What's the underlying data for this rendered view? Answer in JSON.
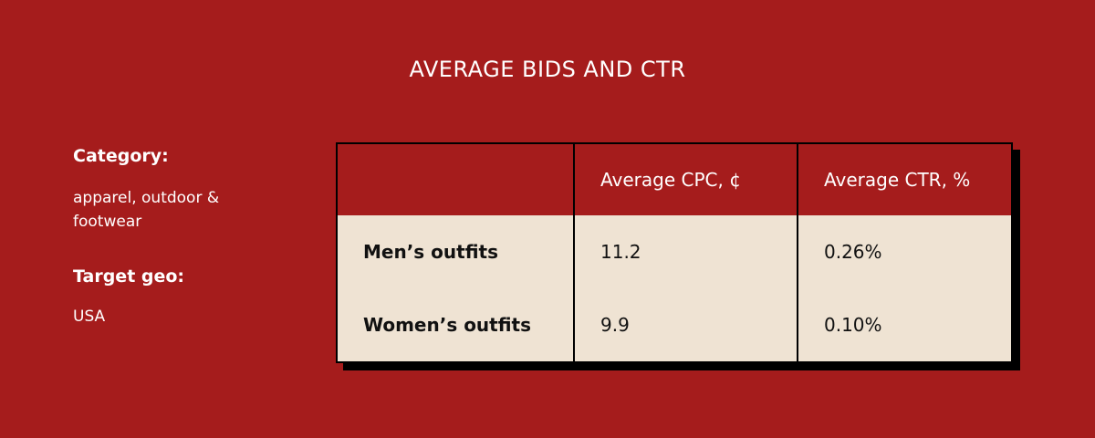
{
  "title": "AVERAGE BIDS AND CTR",
  "info": {
    "category_label": "Category:",
    "category_value": "apparel, outdoor & footwear",
    "geo_label": "Target geo:",
    "geo_value": "USA"
  },
  "table": {
    "header": [
      "",
      "Average CPC, ¢",
      "Average CTR, %"
    ],
    "rows": [
      [
        "Men’s outfits",
        "11.2",
        "0.26%"
      ],
      [
        "Women’s outfits",
        "9.9",
        "0.10%"
      ]
    ]
  }
}
